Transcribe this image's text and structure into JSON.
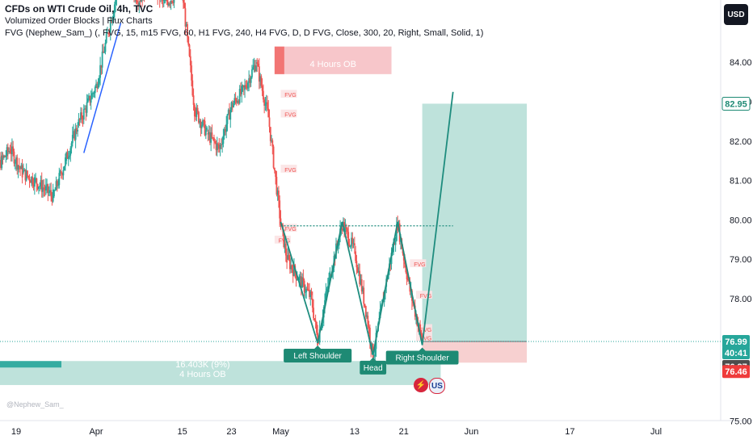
{
  "header": {
    "symbol_line": "CFDs on WTI Crude Oil, 4h, TVC",
    "indicator_1": "Volumized Order Blocks | Flux Charts",
    "indicator_2": "FVG (Nephew_Sam_) (, FVG, 15, m15 FVG, 60, H1 FVG, 240, H4 FVG, D, D FVG, Close, 300, 20, Right, Small, Solid, 1)"
  },
  "currency_button": "USD",
  "watermark": "@Nephew_Sam_",
  "logos": {
    "l1": "⚡",
    "l2": "US"
  },
  "colors": {
    "up_candle": "#26a69a",
    "down_candle": "#ef5350",
    "pattern_line": "#1e8c7e",
    "target_zone": "#a8d8cf",
    "stop_zone": "#f5c4c4",
    "bullish_ob": "#a8d8cf",
    "bearish_ob": "#f5b8bd",
    "label_bg": "#1e8a74",
    "target_badge": "#1e8a74",
    "price_badge": "#26a69a",
    "countdown_badge": "#26a69a",
    "ohlc_badge": "#4d4d4d",
    "stop_badge": "#ef3b3b"
  },
  "chart_data": {
    "type": "candlestick",
    "symbol": "CFDs on WTI Crude Oil",
    "timeframe": "4h",
    "x_axis": {
      "type": "date",
      "ticks": [
        {
          "label": "19",
          "date": "2024-03-19"
        },
        {
          "label": "Apr",
          "date": "2024-04-01"
        },
        {
          "label": "15",
          "date": "2024-04-15"
        },
        {
          "label": "23",
          "date": "2024-04-23"
        },
        {
          "label": "May",
          "date": "2024-05-01"
        },
        {
          "label": "13",
          "date": "2024-05-13"
        },
        {
          "label": "21",
          "date": "2024-05-21"
        },
        {
          "label": "Jun",
          "date": "2024-06-01"
        },
        {
          "label": "17",
          "date": "2024-06-17"
        },
        {
          "label": "Jul",
          "date": "2024-07-01"
        }
      ]
    },
    "y_axis": {
      "ticks": [
        "84.00",
        "83.00",
        "82.00",
        "81.00",
        "80.00",
        "79.00",
        "78.00",
        "75.00"
      ],
      "range": [
        74.6,
        86.0
      ]
    },
    "price_series": [
      {
        "date": "2024-03-14",
        "close": 80.9
      },
      {
        "date": "2024-03-18",
        "close": 81.8
      },
      {
        "date": "2024-03-20",
        "close": 81.2
      },
      {
        "date": "2024-03-22",
        "close": 81.0
      },
      {
        "date": "2024-03-25",
        "close": 80.6
      },
      {
        "date": "2024-03-27",
        "close": 81.5
      },
      {
        "date": "2024-03-29",
        "close": 82.4
      },
      {
        "date": "2024-04-01",
        "close": 83.4
      },
      {
        "date": "2024-04-03",
        "close": 84.8
      },
      {
        "date": "2024-04-05",
        "close": 86.2
      },
      {
        "date": "2024-04-08",
        "close": 85.6
      },
      {
        "date": "2024-04-10",
        "close": 86.0
      },
      {
        "date": "2024-04-12",
        "close": 85.5
      },
      {
        "date": "2024-04-15",
        "close": 85.8
      },
      {
        "date": "2024-04-17",
        "close": 82.8
      },
      {
        "date": "2024-04-19",
        "close": 82.2
      },
      {
        "date": "2024-04-21",
        "close": 81.8
      },
      {
        "date": "2024-04-23",
        "close": 82.9
      },
      {
        "date": "2024-04-25",
        "close": 83.3
      },
      {
        "date": "2024-04-27",
        "close": 84.0
      },
      {
        "date": "2024-04-29",
        "close": 82.6
      },
      {
        "date": "2024-05-01",
        "close": 79.9
      },
      {
        "date": "2024-05-02",
        "close": 79.0
      },
      {
        "date": "2024-05-04",
        "close": 78.5
      },
      {
        "date": "2024-05-06",
        "close": 78.0
      },
      {
        "date": "2024-05-07",
        "close": 77.0
      },
      {
        "date": "2024-05-09",
        "close": 78.6
      },
      {
        "date": "2024-05-11",
        "close": 79.9
      },
      {
        "date": "2024-05-13",
        "close": 79.2
      },
      {
        "date": "2024-05-15",
        "close": 77.6
      },
      {
        "date": "2024-05-16",
        "close": 76.6
      },
      {
        "date": "2024-05-18",
        "close": 78.3
      },
      {
        "date": "2024-05-20",
        "close": 79.9
      },
      {
        "date": "2024-05-22",
        "close": 78.2
      },
      {
        "date": "2024-05-24",
        "close": 76.99
      }
    ],
    "fvg_zones": [
      {
        "label": "FVG",
        "date": "2024-04-15",
        "top": 85.9,
        "bottom": 85.7
      },
      {
        "label": "FVG",
        "date": "2024-04-30",
        "top": 79.6,
        "bottom": 79.4
      },
      {
        "label": "FVG",
        "date": "2024-05-01",
        "top": 83.3,
        "bottom": 83.1
      },
      {
        "label": "FVG",
        "date": "2024-05-01",
        "top": 82.8,
        "bottom": 82.6
      },
      {
        "label": "FVG",
        "date": "2024-05-01",
        "top": 81.4,
        "bottom": 81.2
      },
      {
        "label": "FVG",
        "date": "2024-05-01",
        "top": 79.9,
        "bottom": 79.7
      },
      {
        "label": "FVG",
        "date": "2024-05-22",
        "top": 79.0,
        "bottom": 78.8
      },
      {
        "label": "FVG",
        "date": "2024-05-23",
        "top": 78.2,
        "bottom": 78.0
      },
      {
        "label": "FVG",
        "date": "2024-05-23",
        "top": 77.4,
        "bottom": 77.2
      },
      {
        "label": "FVG",
        "date": "2024-05-23",
        "top": 77.2,
        "bottom": 77.0
      }
    ],
    "order_blocks": [
      {
        "label": "4 Hours OB",
        "volume": "16.403K (9%)",
        "type": "bullish",
        "start": "2024-03-14",
        "end": "2024-05-27",
        "top": 76.5,
        "bottom": 75.9
      },
      {
        "label": "4 Hours OB",
        "volume": "",
        "type": "bearish",
        "start": "2024-04-30",
        "end": "2024-05-19",
        "top": 84.4,
        "bottom": 83.7
      }
    ],
    "pattern": {
      "name": "Inverse Head and Shoulders",
      "neckline": 79.85,
      "points": [
        {
          "date": "2024-05-01",
          "price": 79.95
        },
        {
          "date": "2024-05-07",
          "price": 76.95,
          "label": "Left Shoulder"
        },
        {
          "date": "2024-05-11",
          "price": 79.95
        },
        {
          "date": "2024-05-16",
          "price": 76.65,
          "label": "Head"
        },
        {
          "date": "2024-05-20",
          "price": 79.95
        },
        {
          "date": "2024-05-24",
          "price": 76.9,
          "label": "Right Shoulder"
        },
        {
          "date": "2024-05-29",
          "price": 83.25
        }
      ]
    },
    "trade_zone": {
      "start": "2024-05-24",
      "end": "2024-06-10",
      "entry": 76.99,
      "target": 82.95,
      "stop": 76.46
    },
    "price_labels": {
      "target": "82.95",
      "last": "76.99",
      "countdown": "40:41",
      "low": "76.87",
      "stop": "76.46"
    }
  }
}
